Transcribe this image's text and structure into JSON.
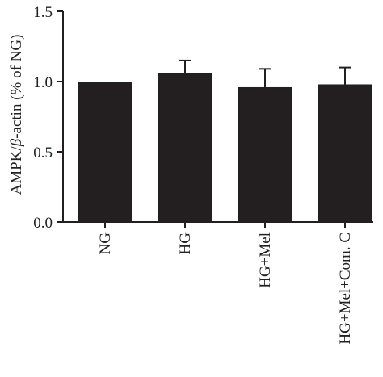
{
  "chart_data": {
    "type": "bar",
    "categories": [
      "NG",
      "HG",
      "HG+Mel",
      "HG+Mel+Com. C"
    ],
    "values": [
      1.0,
      1.06,
      0.96,
      0.98
    ],
    "errors": [
      0.0,
      0.09,
      0.13,
      0.12
    ],
    "ylabel_prefix": "AMPK/",
    "ylabel_greek": "β",
    "ylabel_suffix": "-actin (% of NG)",
    "ylim": [
      0,
      1.5
    ],
    "yticks": [
      0.0,
      0.5,
      1.0,
      1.5
    ],
    "ytick_labels": [
      "0.0",
      "0.5",
      "1.0",
      "1.5"
    ],
    "bar_color": "#231f20",
    "axis_color": "#231f20",
    "grid": false
  }
}
